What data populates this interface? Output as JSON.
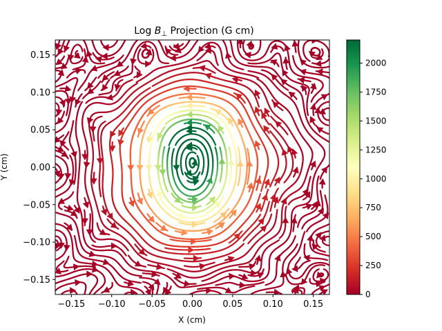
{
  "chart_data": {
    "type": "streamplot",
    "title": "Log  B⊥ Projection (G cm)",
    "title_parts": {
      "lead": "Log  ",
      "symbol": "B",
      "sub": "⊥",
      "tail": " Projection (G cm)"
    },
    "xlabel": "X (cm)",
    "ylabel": "Y (cm)",
    "xlim": [
      -0.17,
      0.17
    ],
    "ylim": [
      -0.17,
      0.17
    ],
    "x_ticks": [
      -0.15,
      -0.1,
      -0.05,
      0.0,
      0.05,
      0.1,
      0.15
    ],
    "x_tick_labels": [
      "−0.15",
      "−0.10",
      "−0.05",
      "0.00",
      "0.05",
      "0.10",
      "0.15"
    ],
    "y_ticks": [
      -0.15,
      -0.1,
      -0.05,
      0.0,
      0.05,
      0.1,
      0.15
    ],
    "y_tick_labels": [
      "−0.15",
      "−0.10",
      "−0.05",
      "0.00",
      "0.05",
      "0.10",
      "0.15"
    ],
    "colorbar": {
      "colormap": "RdYlGn",
      "range": [
        0,
        2200
      ],
      "ticks": [
        0,
        250,
        500,
        750,
        1000,
        1250,
        1500,
        1750,
        2000
      ],
      "tick_labels": [
        "0",
        "250",
        "500",
        "750",
        "1000",
        "1250",
        "1500",
        "1750",
        "2000"
      ],
      "stops": [
        "#a50026",
        "#d73027",
        "#f46d43",
        "#fdae61",
        "#fee08b",
        "#ffffbf",
        "#d9ef8b",
        "#a6d96a",
        "#66bd63",
        "#1a9850",
        "#006837"
      ]
    },
    "field": {
      "upper_center": [
        0.0,
        0.035
      ],
      "lower_center": [
        0.0,
        -0.035
      ],
      "peak_strength": 2100
    },
    "grid": false,
    "legend": "none"
  }
}
